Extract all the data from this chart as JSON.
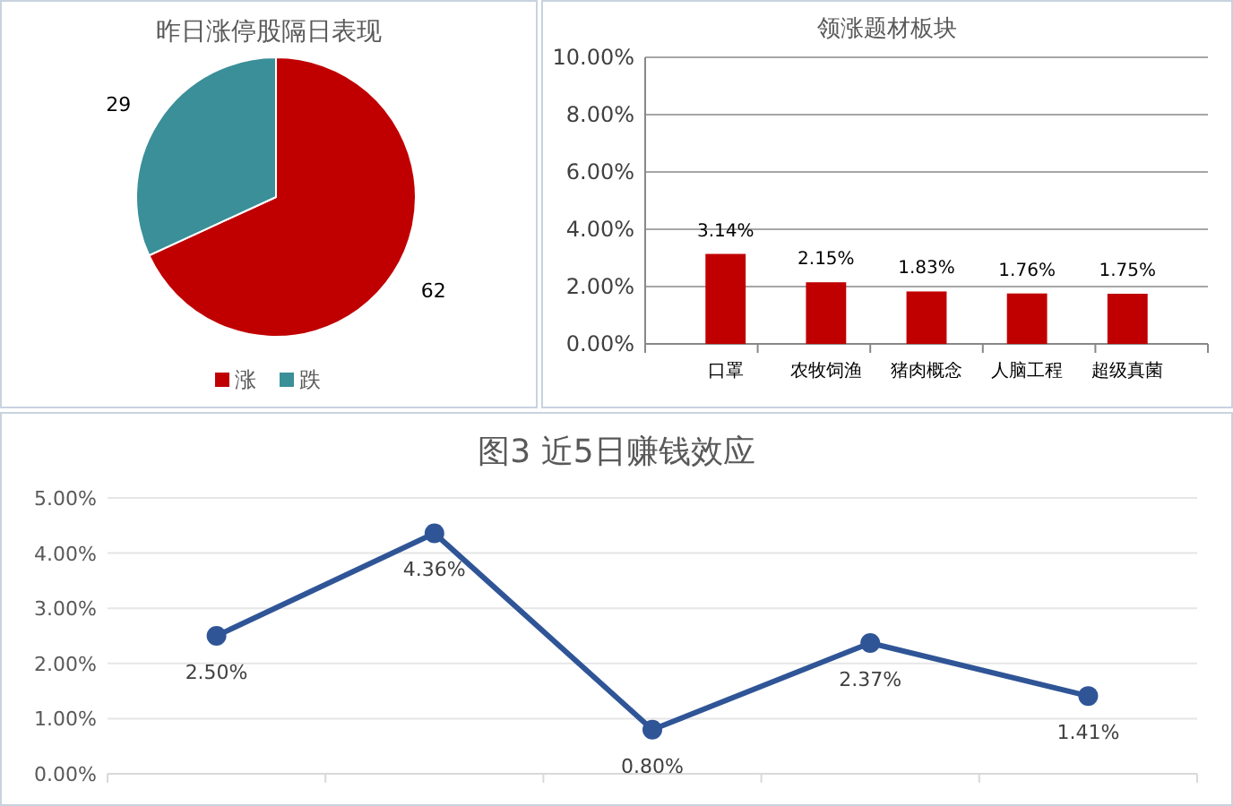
{
  "chart_data": [
    {
      "type": "pie",
      "title": "昨日涨停股隔日表现",
      "categories": [
        "涨",
        "跌"
      ],
      "values": [
        62,
        29
      ],
      "colors": [
        "#c00000",
        "#3a8f99"
      ],
      "data_labels": true,
      "legend": "bottom"
    },
    {
      "type": "bar",
      "title": "领涨题材板块",
      "categories": [
        "口罩",
        "农牧饲渔",
        "猪肉概念",
        "人脑工程",
        "超级真菌"
      ],
      "series": [
        {
          "color": "#c00000",
          "values": [
            3.14,
            2.15,
            1.83,
            1.76,
            1.75
          ]
        }
      ],
      "value_labels": [
        "3.14%",
        "2.15%",
        "1.83%",
        "1.76%",
        "1.75%"
      ],
      "ylim": [
        0,
        10
      ],
      "yticks": [
        {
          "value": 0,
          "label": "0.00%"
        },
        {
          "value": 2,
          "label": "2.00%"
        },
        {
          "value": 4,
          "label": "4.00%"
        },
        {
          "value": 6,
          "label": "6.00%"
        },
        {
          "value": 8,
          "label": "8.00%"
        },
        {
          "value": 10,
          "label": "10.00%"
        }
      ],
      "grid": "y"
    },
    {
      "type": "line",
      "title": "图3 近5日赚钱效应",
      "categories": [
        null,
        null,
        null,
        null,
        null
      ],
      "series": [
        {
          "color": "#2f5597",
          "values": [
            2.5,
            4.36,
            0.8,
            2.37,
            1.41
          ]
        }
      ],
      "value_labels": [
        "2.50%",
        "4.36%",
        "0.80%",
        "2.37%",
        "1.41%"
      ],
      "ylim": [
        0,
        5
      ],
      "yticks": [
        {
          "value": 0,
          "label": "0.00%"
        },
        {
          "value": 1,
          "label": "1.00%"
        },
        {
          "value": 2,
          "label": "2.00%"
        },
        {
          "value": 3,
          "label": "3.00%"
        },
        {
          "value": 4,
          "label": "4.00%"
        },
        {
          "value": 5,
          "label": "5.00%"
        }
      ],
      "grid": "y",
      "marker": "circle",
      "line_style": "solid",
      "tick_labels": "y"
    }
  ]
}
